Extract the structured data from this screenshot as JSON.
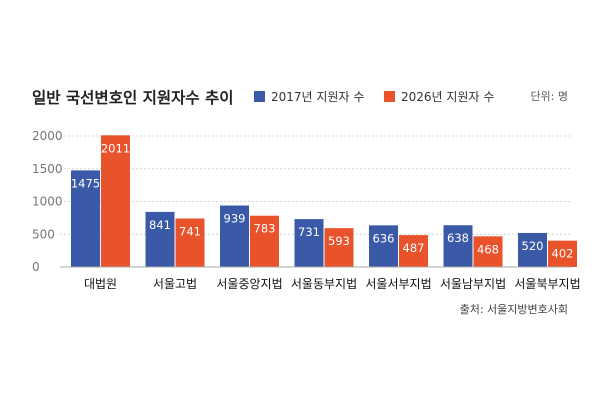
{
  "chart_data": {
    "type": "bar",
    "title": "일반 국선변호인 지원자수 추이",
    "unit_label": "단위: 명",
    "source": "출처: 서울지방변호사회",
    "categories": [
      "대법원",
      "서울고법",
      "서울중앙지법",
      "서울동부지법",
      "서울서부지법",
      "서울남부지법",
      "서울북부지법"
    ],
    "series": [
      {
        "name": "2017년 지원자 수",
        "color": "#3a5aa8",
        "values": [
          1475,
          841,
          939,
          731,
          636,
          638,
          520
        ]
      },
      {
        "name": "2026년 지원자 수",
        "color": "#e8532b",
        "values": [
          2011,
          741,
          783,
          593,
          487,
          468,
          402
        ]
      }
    ],
    "y_ticks": [
      "2000",
      "1500",
      "1000",
      "500",
      "0"
    ],
    "ylim": [
      0,
      2000
    ],
    "grid": true,
    "legend_position": "top-right"
  }
}
